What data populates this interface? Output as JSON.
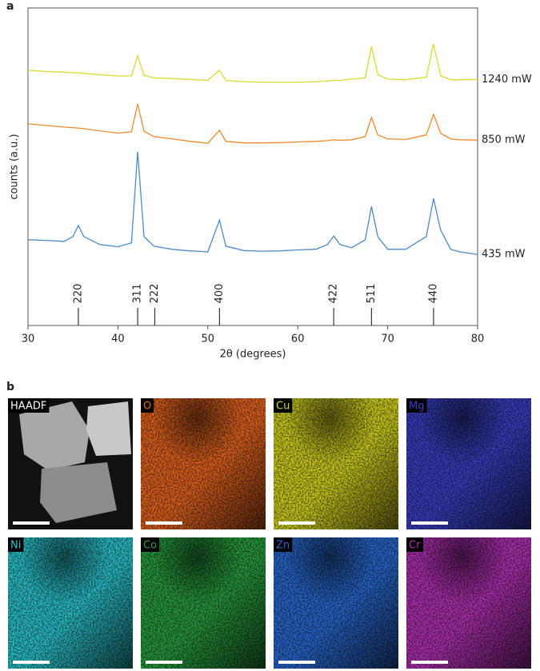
{
  "chart_data": {
    "type": "line",
    "panel_label": "a",
    "xlabel": "2θ (degrees)",
    "ylabel": "counts (a.u.)",
    "xlim": [
      30,
      80
    ],
    "xticks": [
      30,
      40,
      50,
      60,
      70,
      80
    ],
    "ylim": [
      0,
      100
    ],
    "x": [
      30,
      32,
      34,
      35,
      35.6,
      36.2,
      38,
      40,
      41.5,
      42.2,
      42.9,
      44,
      46,
      48,
      50,
      51.3,
      52,
      54,
      56,
      58,
      60,
      62,
      63.3,
      64,
      64.7,
      66,
      67.5,
      68.2,
      68.9,
      70,
      72,
      74.3,
      75.1,
      75.9,
      77,
      78,
      80
    ],
    "series": [
      {
        "name": "1240 mW",
        "color": "#d9dc2e",
        "values": [
          80.4,
          80,
          79.8,
          79.6,
          79.6,
          79.4,
          79,
          78.6,
          78.6,
          84.9,
          78.8,
          78,
          77.8,
          77.5,
          77.2,
          80.4,
          77.2,
          76.8,
          76.6,
          76.6,
          76.6,
          76.8,
          77,
          77.2,
          77.2,
          77.6,
          78,
          87.9,
          79,
          77.6,
          77.4,
          78.2,
          88.7,
          78.6,
          77.4,
          77.4,
          77.5
        ]
      },
      {
        "name": "850 mW",
        "color": "#f08a2c",
        "values": [
          63.5,
          63,
          62.5,
          62.3,
          62.2,
          62,
          61.3,
          60.6,
          61,
          69.8,
          61.2,
          59.5,
          58.8,
          58,
          57.4,
          61.5,
          58,
          57.5,
          57.5,
          57.6,
          57.8,
          58,
          58.2,
          58.5,
          58.3,
          58.5,
          59.5,
          65.5,
          60,
          58.8,
          58.6,
          60,
          66.5,
          60.5,
          58.8,
          58.5,
          58.4
        ]
      },
      {
        "name": "435 mW",
        "color": "#4b8acb",
        "values": [
          27,
          26.8,
          26.5,
          28,
          31.5,
          28,
          25.5,
          24.8,
          26,
          54.7,
          28,
          25,
          24,
          23.5,
          23.2,
          33.2,
          25,
          23.6,
          23.4,
          23.5,
          23.8,
          24,
          25.5,
          28.2,
          25.5,
          24.5,
          27,
          37.5,
          28,
          24,
          24,
          28,
          40,
          30,
          24,
          23.2,
          22.4
        ]
      }
    ],
    "reflections": [
      {
        "label": "220",
        "x": 35.6
      },
      {
        "label": "311",
        "x": 42.2
      },
      {
        "label": "222",
        "x": 44.1
      },
      {
        "label": "400",
        "x": 51.3
      },
      {
        "label": "422",
        "x": 64
      },
      {
        "label": "511",
        "x": 68.2
      },
      {
        "label": "440",
        "x": 75.1
      }
    ]
  },
  "maps_panel_label": "b",
  "maps": [
    {
      "label": "HAADF",
      "color": "#ffffff"
    },
    {
      "label": "O",
      "color": "#e8661f"
    },
    {
      "label": "Cu",
      "color": "#d6d420"
    },
    {
      "label": "Mg",
      "color": "#3b40c4"
    },
    {
      "label": "Ni",
      "color": "#2cc6d0"
    },
    {
      "label": "Co",
      "color": "#2aa040"
    },
    {
      "label": "Zn",
      "color": "#2a6ad2"
    },
    {
      "label": "Cr",
      "color": "#b232b4"
    }
  ]
}
